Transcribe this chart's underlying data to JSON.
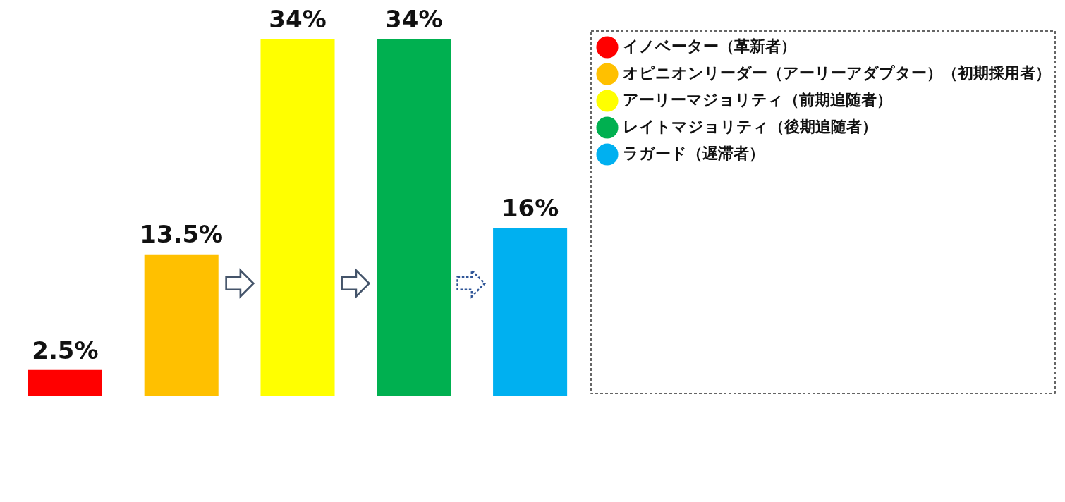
{
  "chart_data": {
    "type": "bar",
    "categories": [
      null,
      null,
      null,
      null,
      null
    ],
    "series": [
      {
        "name": "イノベーター（革新者）",
        "color": "#ff0000",
        "values": [
          2.5,
          null,
          null,
          null,
          null
        ],
        "value_labels": [
          "2.5%",
          null,
          null,
          null,
          null
        ]
      },
      {
        "name": "オピニオンリーダー（アーリーアダプター）（初期採用者）",
        "color": "#ffc000",
        "values": [
          null,
          13.5,
          null,
          null,
          null
        ],
        "value_labels": [
          null,
          "13.5%",
          null,
          null,
          null
        ]
      },
      {
        "name": "アーリーマジョリティ（前期追随者）",
        "color": "#ffff00",
        "values": [
          null,
          null,
          34,
          null,
          null
        ],
        "value_labels": [
          null,
          null,
          "34%",
          null,
          null
        ]
      },
      {
        "name": "レイトマジョリティ（後期追随者）",
        "color": "#00b050",
        "values": [
          null,
          null,
          null,
          34,
          null
        ],
        "value_labels": [
          null,
          null,
          null,
          "34%",
          null
        ]
      },
      {
        "name": "ラガード（遅滞者）",
        "color": "#00b0f0",
        "values": [
          null,
          null,
          null,
          null,
          16
        ],
        "value_labels": [
          null,
          null,
          null,
          null,
          "16%"
        ]
      }
    ],
    "stacked": true,
    "tick_labels": false,
    "legend": "right"
  }
}
